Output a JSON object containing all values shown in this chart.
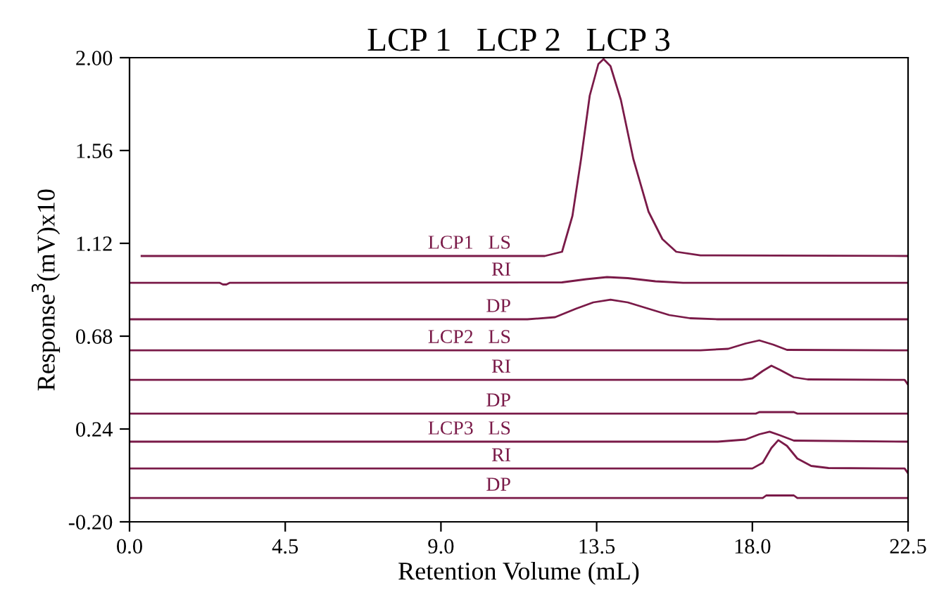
{
  "chart_data": {
    "type": "line",
    "title": "LCP 1   LCP 2   LCP 3",
    "xlabel": "Retention Volume (mL)",
    "ylabel": "Response$^{3}$(mV)x10",
    "xlim": [
      0,
      22.5
    ],
    "ylim": [
      -0.2,
      2.0
    ],
    "xticks": [
      {
        "value": 0,
        "label": "0.0"
      },
      4.5,
      {
        "value": 9,
        "label": "9.0"
      },
      13.5,
      {
        "value": 18,
        "label": "18.0"
      },
      22.5
    ],
    "yticks": [
      {
        "value": -0.2,
        "label": "-0.20"
      },
      0.24,
      0.68,
      1.12,
      1.56,
      {
        "value": 2.0,
        "label": "2.00"
      }
    ],
    "grid": false,
    "legend": false,
    "marker": "none",
    "line_style": "solid",
    "series": [
      {
        "name": "LCP1   LS",
        "color": "#7a1a48",
        "x": [
          0.35,
          12.0,
          12.5,
          12.8,
          13.05,
          13.3,
          13.55,
          13.7,
          13.9,
          14.2,
          14.56,
          15.0,
          15.4,
          15.8,
          16.5,
          22.5
        ],
        "values": [
          1.06,
          1.06,
          1.08,
          1.25,
          1.52,
          1.82,
          1.97,
          1.993,
          1.96,
          1.8,
          1.52,
          1.27,
          1.14,
          1.08,
          1.063,
          1.06
        ]
      },
      {
        "name": "RI",
        "color": "#7a1a48",
        "x": [
          0,
          2.6,
          2.7,
          2.8,
          2.9,
          12.5,
          13.2,
          13.8,
          14.4,
          15.2,
          16.0,
          22.5
        ],
        "values": [
          0.933,
          0.933,
          0.925,
          0.925,
          0.933,
          0.935,
          0.95,
          0.96,
          0.955,
          0.94,
          0.933,
          0.933
        ]
      },
      {
        "name": "DP",
        "color": "#7a1a48",
        "x": [
          0,
          11.5,
          12.3,
          12.9,
          13.4,
          13.9,
          14.4,
          15.0,
          15.6,
          16.2,
          17.0,
          22.5
        ],
        "values": [
          0.76,
          0.76,
          0.77,
          0.81,
          0.84,
          0.853,
          0.84,
          0.81,
          0.78,
          0.765,
          0.76,
          0.76
        ]
      },
      {
        "name": "LCP2   LS",
        "color": "#7a1a48",
        "x": [
          0,
          16.5,
          17.3,
          17.8,
          18.2,
          18.6,
          19.0,
          22.5
        ],
        "values": [
          0.613,
          0.613,
          0.62,
          0.645,
          0.66,
          0.64,
          0.615,
          0.613
        ]
      },
      {
        "name": "RI",
        "color": "#7a1a48",
        "x": [
          0,
          17.7,
          18.0,
          18.3,
          18.55,
          18.8,
          19.2,
          19.6,
          22.4,
          22.5
        ],
        "values": [
          0.473,
          0.473,
          0.48,
          0.515,
          0.54,
          0.52,
          0.485,
          0.475,
          0.473,
          0.45
        ]
      },
      {
        "name": "DP",
        "color": "#7a1a48",
        "x": [
          0,
          18.1,
          18.2,
          19.2,
          19.3,
          22.5
        ],
        "values": [
          0.313,
          0.313,
          0.32,
          0.32,
          0.313,
          0.313
        ]
      },
      {
        "name": "LCP3   LS",
        "color": "#7a1a48",
        "x": [
          0,
          17.0,
          17.8,
          18.2,
          18.5,
          18.8,
          19.2,
          22.5
        ],
        "values": [
          0.18,
          0.18,
          0.19,
          0.215,
          0.227,
          0.21,
          0.185,
          0.18
        ]
      },
      {
        "name": "RI",
        "color": "#7a1a48",
        "x": [
          0,
          18.0,
          18.3,
          18.55,
          18.75,
          19.0,
          19.3,
          19.7,
          20.2,
          22.4,
          22.5
        ],
        "values": [
          0.053,
          0.053,
          0.08,
          0.15,
          0.187,
          0.16,
          0.1,
          0.065,
          0.055,
          0.053,
          0.03
        ]
      },
      {
        "name": "DP",
        "color": "#7a1a48",
        "x": [
          0,
          18.3,
          18.4,
          19.2,
          19.3,
          22.5
        ],
        "values": [
          -0.087,
          -0.087,
          -0.075,
          -0.075,
          -0.087,
          -0.087
        ]
      }
    ]
  }
}
